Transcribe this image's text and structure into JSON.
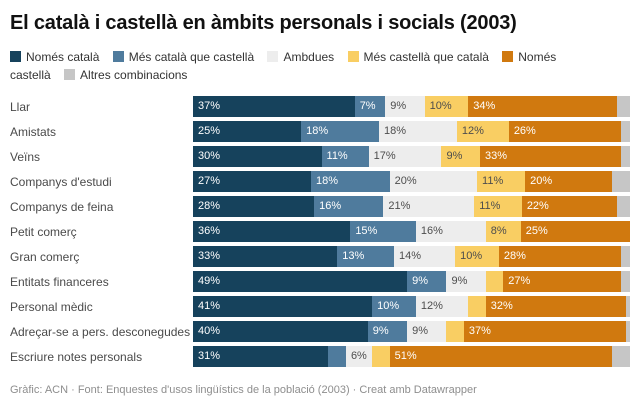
{
  "title": "El català i castellà en àmbits personals i socials (2003)",
  "footer": "Gràfic: ACN · Font: Enquestes d'usos lingüístics de la població (2003) · Creat amb Datawrapper",
  "colors": {
    "nomes_catala": "#16425c",
    "mes_catala": "#4f7b9d",
    "ambdues": "#ededed",
    "mes_castella": "#f9ce63",
    "nomes_castella": "#d0790f",
    "altres": "#c6c6c6",
    "label_on_dark": "#ffffff",
    "label_on_light": "#4d4d4d"
  },
  "chart_data": {
    "type": "bar",
    "stacked": true,
    "orientation": "horizontal",
    "title": "El català i castellà en àmbits personals i socials (2003)",
    "xlim": [
      0,
      100
    ],
    "grid": false,
    "legend_position": "top",
    "series_names": [
      "Només català",
      "Més català que castellà",
      "Ambdues",
      "Més castellà que català",
      "Només castellà",
      "Altres combinacions"
    ],
    "series_colors": [
      "#16425c",
      "#4f7b9d",
      "#ededed",
      "#f9ce63",
      "#d0790f",
      "#c6c6c6"
    ],
    "light_series": [
      2,
      3,
      5
    ],
    "categories": [
      "Llar",
      "Amistats",
      "Veïns",
      "Companys d'estudi",
      "Companys de feina",
      "Petit comerç",
      "Gran comerç",
      "Entitats financeres",
      "Personal mèdic",
      "Adreçar-se a pers. desconegudes",
      "Escriure notes personals"
    ],
    "rows": [
      {
        "category": "Llar",
        "values": [
          37,
          7,
          9,
          10,
          34,
          3
        ],
        "labels": [
          "37%",
          "7%",
          "9%",
          "10%",
          "34%",
          ""
        ]
      },
      {
        "category": "Amistats",
        "values": [
          25,
          18,
          18,
          12,
          26,
          2
        ],
        "labels": [
          "25%",
          "18%",
          "18%",
          "12%",
          "26%",
          ""
        ]
      },
      {
        "category": "Veïns",
        "values": [
          30,
          11,
          17,
          9,
          33,
          2
        ],
        "labels": [
          "30%",
          "11%",
          "17%",
          "9%",
          "33%",
          ""
        ]
      },
      {
        "category": "Companys d'estudi",
        "values": [
          27,
          18,
          20,
          11,
          20,
          4
        ],
        "labels": [
          "27%",
          "18%",
          "20%",
          "11%",
          "20%",
          ""
        ]
      },
      {
        "category": "Companys de feina",
        "values": [
          28,
          16,
          21,
          11,
          22,
          3
        ],
        "labels": [
          "28%",
          "16%",
          "21%",
          "11%",
          "22%",
          ""
        ]
      },
      {
        "category": "Petit comerç",
        "values": [
          36,
          15,
          16,
          8,
          25,
          0
        ],
        "labels": [
          "36%",
          "15%",
          "16%",
          "8%",
          "25%",
          ""
        ]
      },
      {
        "category": "Gran comerç",
        "values": [
          33,
          13,
          14,
          10,
          28,
          2
        ],
        "labels": [
          "33%",
          "13%",
          "14%",
          "10%",
          "28%",
          ""
        ]
      },
      {
        "category": "Entitats financeres",
        "values": [
          49,
          9,
          9,
          4,
          27,
          2
        ],
        "labels": [
          "49%",
          "9%",
          "9%",
          "",
          "27%",
          ""
        ]
      },
      {
        "category": "Personal mèdic",
        "values": [
          41,
          10,
          12,
          4,
          32,
          1
        ],
        "labels": [
          "41%",
          "10%",
          "12%",
          "",
          "32%",
          ""
        ]
      },
      {
        "category": "Adreçar-se a pers. desconegudes",
        "values": [
          40,
          9,
          9,
          4,
          37,
          1
        ],
        "labels": [
          "40%",
          "9%",
          "9%",
          "",
          "37%",
          ""
        ]
      },
      {
        "category": "Escriure notes personals",
        "values": [
          31,
          4,
          6,
          4,
          51,
          4
        ],
        "labels": [
          "31%",
          "",
          "6%",
          "",
          "51%",
          ""
        ]
      }
    ]
  }
}
